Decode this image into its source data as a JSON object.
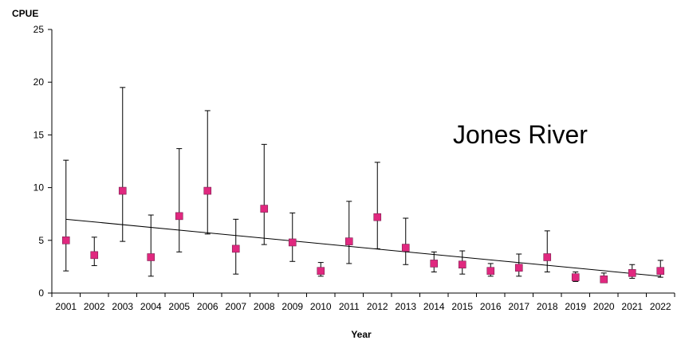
{
  "chart_data": {
    "type": "scatter",
    "title": "",
    "annotation": "Jones River",
    "xlabel": "Year",
    "ylabel": "CPUE",
    "ylim": [
      0,
      25
    ],
    "yticks": [
      0,
      5,
      10,
      15,
      20,
      25
    ],
    "grid": false,
    "legend": "none",
    "categories": [
      "2001",
      "2002",
      "2003",
      "2004",
      "2005",
      "2006",
      "2007",
      "2008",
      "2009",
      "2010",
      "2011",
      "2012",
      "2013",
      "2014",
      "2015",
      "2016",
      "2017",
      "2018",
      "2019",
      "2020",
      "2021",
      "2022"
    ],
    "series": [
      {
        "marker": "square",
        "color": "#e0287f",
        "values": [
          5.0,
          3.6,
          9.7,
          3.4,
          7.3,
          9.7,
          4.2,
          8.0,
          4.8,
          2.1,
          4.9,
          7.2,
          4.3,
          2.8,
          2.7,
          2.1,
          2.4,
          3.4,
          1.5,
          1.3,
          1.9,
          2.1
        ],
        "error_upper": [
          12.6,
          5.3,
          19.5,
          7.4,
          13.7,
          17.3,
          7.0,
          14.1,
          7.6,
          2.9,
          8.7,
          12.4,
          7.1,
          3.9,
          4.0,
          2.8,
          3.7,
          5.9,
          2.0,
          1.9,
          2.7,
          3.1
        ],
        "error_lower": [
          2.1,
          2.6,
          4.9,
          1.6,
          3.9,
          5.6,
          1.8,
          4.6,
          3.0,
          1.6,
          2.8,
          4.2,
          2.7,
          2.0,
          1.8,
          1.6,
          1.6,
          2.0,
          1.1,
          1.0,
          1.4,
          1.5
        ]
      }
    ],
    "trendline": {
      "type": "linear",
      "start": 7.0,
      "end": 1.6,
      "color": "#000000"
    }
  }
}
